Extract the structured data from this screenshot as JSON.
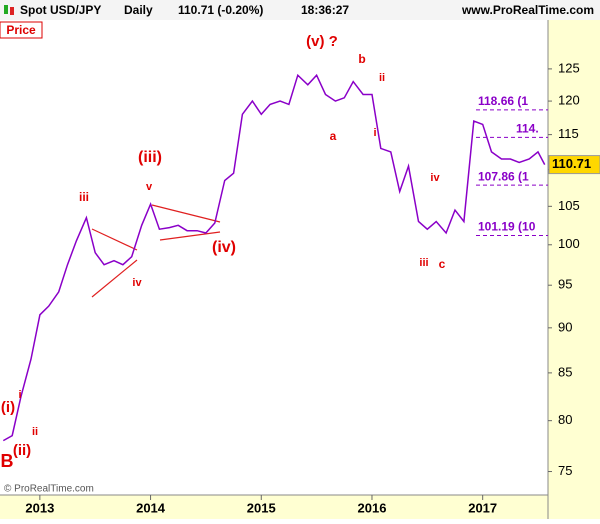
{
  "header": {
    "symbol": "Spot USD/JPY",
    "period": "Daily",
    "quote": "110.71 (-0.20%)",
    "time": "18:36:27",
    "site": "www.ProRealTime.com"
  },
  "panel_label": "Price",
  "footer": "© ProRealTime.com",
  "chart_data": {
    "type": "line",
    "log_scale": true,
    "x": [
      2012.67,
      2012.75,
      2012.83,
      2012.92,
      2013.0,
      2013.08,
      2013.17,
      2013.25,
      2013.33,
      2013.42,
      2013.5,
      2013.58,
      2013.67,
      2013.75,
      2013.83,
      2013.92,
      2014.0,
      2014.08,
      2014.17,
      2014.25,
      2014.33,
      2014.42,
      2014.5,
      2014.58,
      2014.67,
      2014.75,
      2014.83,
      2014.92,
      2015.0,
      2015.08,
      2015.17,
      2015.25,
      2015.33,
      2015.42,
      2015.5,
      2015.58,
      2015.67,
      2015.75,
      2015.83,
      2015.92,
      2016.0,
      2016.08,
      2016.17,
      2016.25,
      2016.33,
      2016.42,
      2016.5,
      2016.58,
      2016.67,
      2016.75,
      2016.83,
      2016.92,
      2017.0,
      2017.08,
      2017.17,
      2017.25,
      2017.33,
      2017.42,
      2017.5,
      2017.56
    ],
    "series": [
      {
        "name": "Spot USD/JPY",
        "color": "#8a00c8",
        "values": [
          78,
          78.5,
          82.5,
          86.5,
          91.5,
          92.5,
          94.2,
          97.5,
          100.5,
          103.5,
          99,
          97.5,
          98,
          97.5,
          98.5,
          102.5,
          105.3,
          102,
          102.2,
          102.5,
          101.8,
          101.8,
          101.5,
          102.8,
          108.5,
          109.5,
          118,
          120,
          118,
          119.5,
          120,
          119.5,
          124,
          122.5,
          124,
          121,
          120,
          120.5,
          123,
          121,
          121,
          113,
          112.5,
          107,
          110.5,
          103,
          102,
          103,
          101.5,
          104.5,
          103,
          117,
          116.5,
          112.5,
          111.5,
          111.5,
          111,
          111.5,
          112.5,
          110.71
        ]
      }
    ],
    "xlim": [
      2012.64,
      2017.59
    ],
    "xticks": [
      2013,
      2014,
      2015,
      2016,
      2017
    ],
    "ylim": [
      72.8,
      133
    ],
    "yticks": [
      75,
      80,
      85,
      90,
      95,
      100,
      105,
      110,
      115,
      120,
      125
    ],
    "levels": [
      {
        "value": 118.66,
        "label": "118.66 (1"
      },
      {
        "value": 114.6,
        "label": "114."
      },
      {
        "value": 107.86,
        "label": "107.86 (1"
      },
      {
        "value": 101.19,
        "label": "101.19 (10"
      }
    ],
    "last_price": {
      "value": 110.71,
      "label": "110.71"
    },
    "annotations": [
      "(v) ?",
      "b",
      "a",
      "ii",
      "i",
      "(iii)",
      "v",
      "iii",
      "iv",
      "(iv)",
      "i",
      "ii",
      "(i)",
      "(ii)",
      "B",
      "iv",
      "iii",
      "c"
    ]
  }
}
